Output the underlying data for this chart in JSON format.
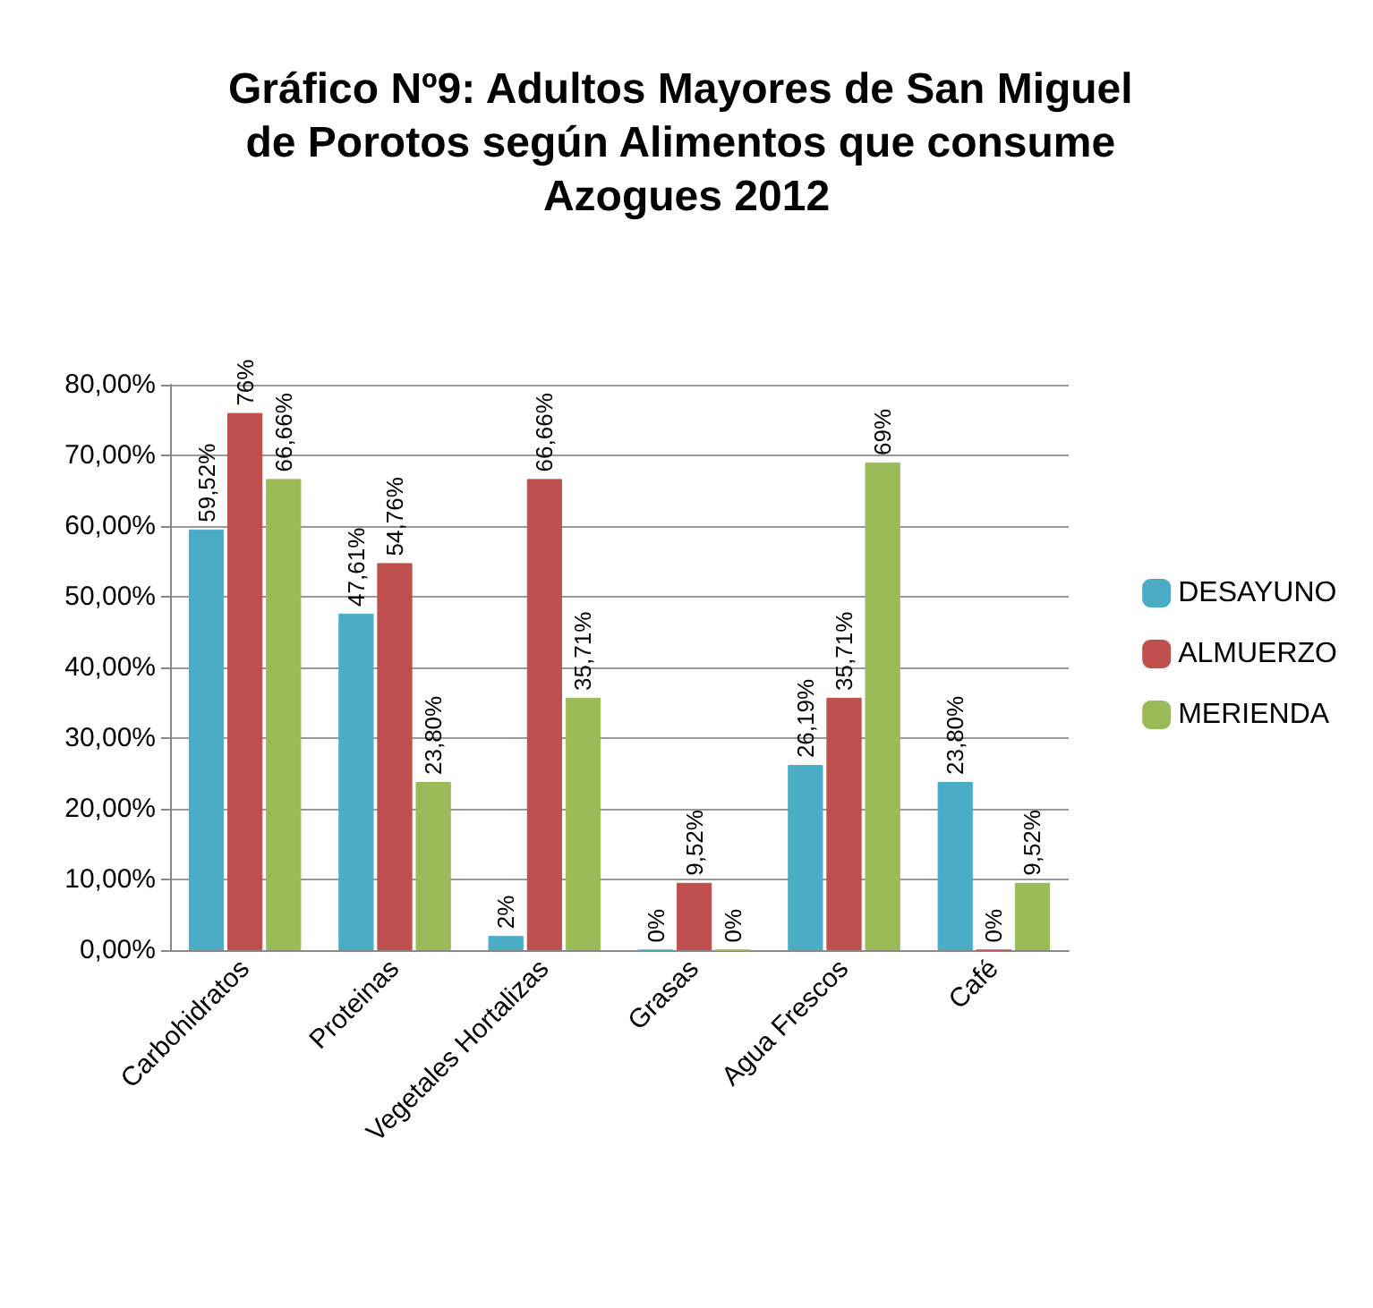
{
  "chart_data": {
    "type": "bar",
    "title": "Gráfico Nº9: Adultos Mayores de San Miguel de Porotos según Alimentos que consume Azogues 2012",
    "categories": [
      "Carbohidratos",
      "Proteinas",
      "Vegetales Hortalizas",
      "Grasas",
      "Agua Frescos",
      "Café"
    ],
    "series": [
      {
        "name": "DESAYUNO",
        "color": "#4bacc6",
        "values": [
          59.52,
          47.61,
          2,
          0,
          26.19,
          23.8
        ],
        "value_labels": [
          "59,52%",
          "47,61%",
          "2%",
          "0%",
          "26,19%",
          "23,80%"
        ]
      },
      {
        "name": "ALMUERZO",
        "color": "#c0504d",
        "values": [
          76,
          54.76,
          66.66,
          9.52,
          35.71,
          0
        ],
        "value_labels": [
          "76%",
          "54,76%",
          "66,66%",
          "9,52%",
          "35,71%",
          "0%"
        ]
      },
      {
        "name": "MERIENDA",
        "color": "#9bbb59",
        "values": [
          66.66,
          23.8,
          35.71,
          0,
          69,
          9.52
        ],
        "value_labels": [
          "66,66%",
          "23,80%",
          "35,71%",
          "0%",
          "69%",
          "9,52%"
        ]
      }
    ],
    "ylim": [
      0,
      80
    ],
    "yticks": [
      {
        "value": 0,
        "label": "0,00%"
      },
      {
        "value": 10,
        "label": "10,00%"
      },
      {
        "value": 20,
        "label": "20,00%"
      },
      {
        "value": 30,
        "label": "30,00%"
      },
      {
        "value": 40,
        "label": "40,00%"
      },
      {
        "value": 50,
        "label": "50,00%"
      },
      {
        "value": 60,
        "label": "60,00%"
      },
      {
        "value": 70,
        "label": "70,00%"
      },
      {
        "value": 80,
        "label": "80,00%"
      }
    ],
    "grid": "y",
    "legend": "right"
  }
}
